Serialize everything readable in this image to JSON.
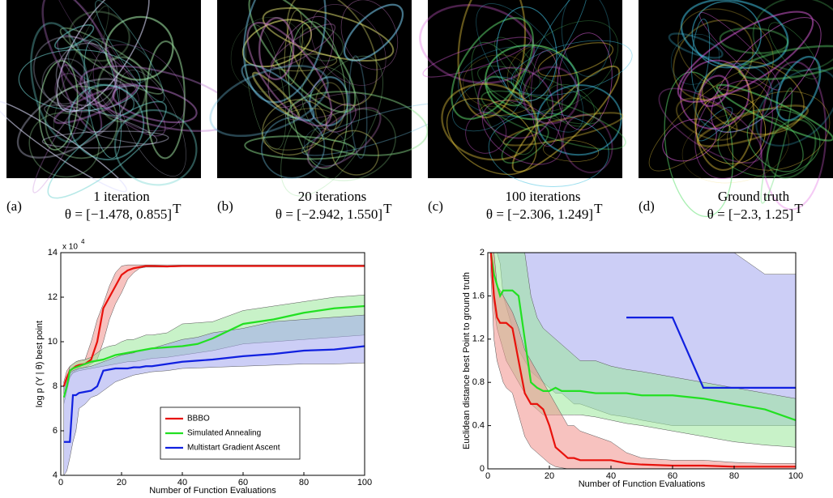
{
  "panels": [
    {
      "label": "(a)",
      "title": "1 iteration",
      "theta": "θ = [−1.478, 0.855]",
      "sup": "T"
    },
    {
      "label": "(b)",
      "title": "20 iterations",
      "theta": "θ = [−2.942, 1.550]",
      "sup": "T"
    },
    {
      "label": "(c)",
      "title": "100 iterations",
      "theta": "θ = [−2.306, 1.249]",
      "sup": "T"
    },
    {
      "label": "(d)",
      "title": "Ground truth",
      "theta": "θ = [−2.3, 1.25]",
      "sup": "T"
    }
  ],
  "chart_data": [
    {
      "type": "line",
      "x_label": "Number of Function Evaluations",
      "y_label": "log p (Y | θ) best point",
      "multiplier": "x 10",
      "multiplier_exp": "4",
      "xlim": [
        0,
        100
      ],
      "xticks": [
        0,
        20,
        40,
        60,
        80,
        100
      ],
      "ylim": [
        40000,
        140000
      ],
      "yticks": [
        {
          "value": 40000,
          "label": "4"
        },
        {
          "value": 60000,
          "label": "6"
        },
        {
          "value": 80000,
          "label": "8"
        },
        {
          "value": 100000,
          "label": "10"
        },
        {
          "value": 120000,
          "label": "12"
        },
        {
          "value": 140000,
          "label": "14"
        }
      ],
      "legend": "lower right",
      "x": [
        1,
        2,
        3,
        4,
        5,
        6,
        8,
        10,
        12,
        14,
        16,
        18,
        20,
        22,
        24,
        26,
        28,
        30,
        35,
        40,
        45,
        50,
        60,
        70,
        80,
        90,
        100
      ],
      "series": [
        {
          "name": "BBBO",
          "color": "#e8120c",
          "band_color": "#f08f8a",
          "values": [
            80000,
            84000,
            87000,
            88000,
            89000,
            89500,
            90000,
            92000,
            100000,
            115000,
            120000,
            125000,
            130000,
            132000,
            133000,
            133500,
            134000,
            134000,
            133800,
            134000,
            134000,
            134000,
            134000,
            134000,
            134000,
            134000,
            134000
          ],
          "lower": [
            76000,
            80000,
            84000,
            86000,
            87000,
            88000,
            88500,
            90000,
            92000,
            100000,
            110000,
            117000,
            122000,
            128000,
            131000,
            133000,
            133500,
            133500,
            133500,
            133800,
            134000,
            134000,
            134000,
            134000,
            134000,
            134000,
            134000
          ],
          "upper": [
            82000,
            87000,
            89000,
            90000,
            91000,
            91500,
            92000,
            100000,
            110000,
            117000,
            125000,
            131000,
            134000,
            134500,
            134500,
            134500,
            134500,
            134500,
            134500,
            134500,
            134500,
            134500,
            134500,
            134500,
            134500,
            134500,
            134500
          ]
        },
        {
          "name": "Simulated Annealing",
          "color": "#22e022",
          "band_color": "#9be89b",
          "values": [
            75000,
            80000,
            87000,
            88000,
            88500,
            89000,
            90000,
            91000,
            91500,
            92000,
            93000,
            94000,
            94500,
            95000,
            95500,
            96000,
            96500,
            97000,
            97500,
            98000,
            99000,
            101500,
            108000,
            110000,
            113000,
            115000,
            116000
          ],
          "lower": [
            72000,
            78000,
            84000,
            86000,
            86500,
            87000,
            87500,
            88000,
            88500,
            89000,
            89500,
            90000,
            90500,
            91000,
            91000,
            91500,
            92000,
            92500,
            93000,
            94000,
            95000,
            96000,
            99000,
            100000,
            101000,
            102000,
            103000
          ],
          "upper": [
            78000,
            83000,
            89000,
            90000,
            91000,
            91500,
            92000,
            93000,
            95000,
            97000,
            98000,
            98500,
            100000,
            101000,
            101000,
            102000,
            103000,
            103000,
            104000,
            108000,
            108500,
            109000,
            114000,
            116000,
            118000,
            120000,
            121000
          ]
        },
        {
          "name": "Multistart Gradient Ascent",
          "color": "#1020e0",
          "band_color": "#a3a6ee",
          "values": [
            55000,
            55000,
            55000,
            76000,
            76000,
            77000,
            77500,
            78000,
            80000,
            87000,
            87500,
            88000,
            88000,
            88000,
            88500,
            88500,
            89000,
            89000,
            90000,
            91000,
            91500,
            92000,
            93500,
            94500,
            96000,
            96500,
            98000
          ],
          "lower": [
            40000,
            42000,
            48000,
            55000,
            60000,
            70000,
            72000,
            75000,
            76000,
            78000,
            80000,
            82000,
            83000,
            84000,
            85000,
            85500,
            86000,
            86500,
            87000,
            88000,
            88200,
            88500,
            89000,
            89500,
            90000,
            90000,
            90500
          ],
          "upper": [
            80000,
            84000,
            86000,
            87000,
            87500,
            88000,
            88500,
            89000,
            90000,
            91000,
            92000,
            93000,
            94000,
            94500,
            95000,
            96000,
            96500,
            97000,
            99000,
            101000,
            102000,
            104000,
            106000,
            109000,
            110000,
            111000,
            112000
          ]
        }
      ]
    },
    {
      "type": "line",
      "x_label": "Number of Function Evaluations",
      "y_label": "Euclidean distance best Point to ground truth",
      "xlim": [
        0,
        100
      ],
      "xticks": [
        0,
        20,
        40,
        60,
        80,
        100
      ],
      "ylim": [
        0,
        2
      ],
      "yticks": [
        0,
        0.4,
        0.8,
        1.2,
        1.6,
        2
      ],
      "x": [
        1,
        2,
        3,
        4,
        5,
        6,
        8,
        10,
        12,
        14,
        16,
        18,
        20,
        22,
        24,
        26,
        28,
        30,
        35,
        40,
        45,
        50,
        60,
        70,
        80,
        90,
        100
      ],
      "series": [
        {
          "color": "#1020e0",
          "band_color": "#a3a6ee",
          "values": [
            null,
            null,
            null,
            null,
            null,
            null,
            null,
            null,
            null,
            null,
            null,
            null,
            null,
            null,
            null,
            null,
            null,
            null,
            null,
            null,
            1.4,
            1.4,
            1.4,
            0.75,
            0.75,
            0.75,
            0.75
          ],
          "lower": [
            2,
            2,
            2,
            1.9,
            1.6,
            1.5,
            1.3,
            1.1,
            1.0,
            0.9,
            0.85,
            0.8,
            0.75,
            0.7,
            0.7,
            0.65,
            0.6,
            0.6,
            0.55,
            0.5,
            0.48,
            0.45,
            0.4,
            0.4,
            0.4,
            0.4,
            0.4
          ],
          "upper": [
            2,
            2,
            2,
            2,
            2,
            2,
            2,
            2,
            2,
            2,
            2,
            2,
            2,
            2,
            2,
            2,
            2,
            2,
            2,
            2,
            2,
            2,
            2,
            2,
            2,
            1.8,
            1.8
          ]
        },
        {
          "color": "#22e022",
          "band_color": "#9be89b",
          "values": [
            2.0,
            1.8,
            1.7,
            1.6,
            1.65,
            1.65,
            1.65,
            1.6,
            1.2,
            0.8,
            0.75,
            0.72,
            0.72,
            0.75,
            0.72,
            0.72,
            0.72,
            0.72,
            0.7,
            0.7,
            0.7,
            0.68,
            0.68,
            0.65,
            0.6,
            0.55,
            0.45
          ],
          "lower": [
            1.9,
            1.5,
            1.3,
            1.2,
            1.1,
            1.0,
            0.9,
            0.8,
            0.7,
            0.6,
            0.55,
            0.5,
            0.5,
            0.5,
            0.5,
            0.5,
            0.5,
            0.5,
            0.48,
            0.45,
            0.42,
            0.4,
            0.35,
            0.3,
            0.25,
            0.22,
            0.2
          ],
          "upper": [
            2,
            2,
            2,
            2,
            2,
            2,
            2,
            2,
            2,
            1.6,
            1.4,
            1.3,
            1.25,
            1.2,
            1.15,
            1.1,
            1.05,
            1.0,
            1.0,
            0.95,
            0.92,
            0.9,
            0.85,
            0.8,
            0.75,
            0.7,
            0.65
          ]
        },
        {
          "color": "#e8120c",
          "band_color": "#f08f8a",
          "values": [
            2.0,
            1.6,
            1.4,
            1.35,
            1.35,
            1.35,
            1.3,
            1.0,
            0.7,
            0.6,
            0.6,
            0.55,
            0.4,
            0.2,
            0.15,
            0.1,
            0.1,
            0.08,
            0.08,
            0.08,
            0.05,
            0.04,
            0.03,
            0.03,
            0.02,
            0.02,
            0.02
          ],
          "lower": [
            1.8,
            1.2,
            1.0,
            0.9,
            0.8,
            0.75,
            0.7,
            0.5,
            0.3,
            0.2,
            0.15,
            0.1,
            0.05,
            0.02,
            0.01,
            0,
            0,
            0,
            0,
            0,
            0,
            0,
            0,
            0,
            0,
            0,
            0
          ],
          "upper": [
            2,
            2,
            1.7,
            1.65,
            1.6,
            1.55,
            1.45,
            1.3,
            1.1,
            1.0,
            0.9,
            0.8,
            0.7,
            0.6,
            0.5,
            0.4,
            0.4,
            0.35,
            0.3,
            0.25,
            0.15,
            0.1,
            0.08,
            0.08,
            0.06,
            0.05,
            0.05
          ]
        }
      ]
    }
  ]
}
